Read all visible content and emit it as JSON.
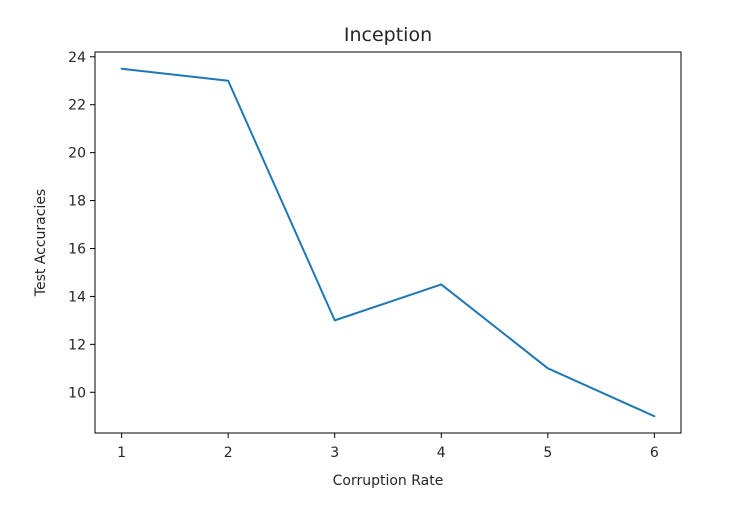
{
  "chart_data": {
    "type": "line",
    "title": "Inception",
    "xlabel": "Corruption Rate",
    "ylabel": "Test Accuracies",
    "x": [
      1,
      2,
      3,
      4,
      5,
      6
    ],
    "series": [
      {
        "values": [
          23.5,
          23.0,
          13.0,
          14.5,
          11.0,
          9.0
        ],
        "color": "#1f77b4"
      }
    ],
    "xlim": [
      0.75,
      6.25
    ],
    "ylim": [
      8.3,
      24.2
    ],
    "xticks": [
      1,
      2,
      3,
      4,
      5,
      6
    ],
    "yticks": [
      10,
      12,
      14,
      16,
      18,
      20,
      22,
      24
    ],
    "grid": false,
    "legend": "none"
  }
}
